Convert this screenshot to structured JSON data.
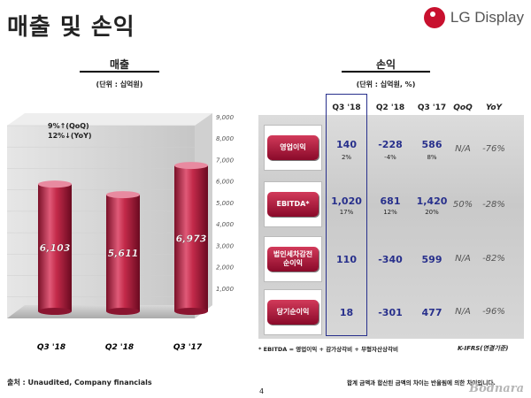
{
  "header": {
    "title": "매출 및 손익",
    "logo_text": "LG Display"
  },
  "left": {
    "section_title": "매출",
    "unit": "(단위 : 십억원)",
    "growth_line1": "9%↑(QoQ)",
    "growth_line2": "12%↓(YoY)"
  },
  "right": {
    "section_title": "손익",
    "unit": "(단위 : 십억원, %)"
  },
  "chart_data": {
    "type": "bar",
    "categories": [
      "Q3 '18",
      "Q2 '18",
      "Q3 '17"
    ],
    "values": [
      6103,
      5611,
      6973
    ],
    "value_labels": [
      "6,103",
      "5,611",
      "6,973"
    ],
    "ylim": [
      0,
      9000
    ],
    "yticks": [
      1000,
      2000,
      3000,
      4000,
      5000,
      6000,
      7000,
      8000,
      9000
    ],
    "ytick_labels": [
      "1,000",
      "2,000",
      "3,000",
      "4,000",
      "5,000",
      "6,000",
      "7,000",
      "8,000",
      "9,000"
    ],
    "title": "매출",
    "xlabel": "",
    "ylabel": "",
    "bar_color": "#b3243f"
  },
  "table": {
    "columns": [
      "Q3 '18",
      "Q2 '18",
      "Q3 '17",
      "QoQ",
      "YoY"
    ],
    "rows": [
      {
        "label_line1": "영업이익",
        "label_line2": "",
        "q3_18": "140",
        "q3_18_pct": "2%",
        "q2_18": "-228",
        "q2_18_pct": "-4%",
        "q3_17": "586",
        "q3_17_pct": "8%",
        "qoq": "N/A",
        "yoy": "-76%"
      },
      {
        "label_line1": "EBITDA*",
        "label_line2": "",
        "q3_18": "1,020",
        "q3_18_pct": "17%",
        "q2_18": "681",
        "q2_18_pct": "12%",
        "q3_17": "1,420",
        "q3_17_pct": "20%",
        "qoq": "50%",
        "yoy": "-28%"
      },
      {
        "label_line1": "법인세차감전",
        "label_line2": "순이익",
        "q3_18": "110",
        "q3_18_pct": "",
        "q2_18": "-340",
        "q2_18_pct": "",
        "q3_17": "599",
        "q3_17_pct": "",
        "qoq": "N/A",
        "yoy": "-82%"
      },
      {
        "label_line1": "당기순이익",
        "label_line2": "",
        "q3_18": "18",
        "q3_18_pct": "",
        "q2_18": "-301",
        "q2_18_pct": "",
        "q3_17": "477",
        "q3_17_pct": "",
        "qoq": "N/A",
        "yoy": "-96%"
      }
    ]
  },
  "footer": {
    "footnote": "* EBITDA = 영업이익 + 감가상각비 + 무형자산상각비",
    "standard": "K-IFRS(연결기준)",
    "source": "출처 : Unaudited, Company financials",
    "rounding": "합계 금액과 합산된 금액의 차이는 반올림에 의한 차이입니다.",
    "page": "4",
    "watermark": "Bodnara"
  },
  "colors": {
    "accent_red": "#c8102e",
    "highlight_blue": "#28308c"
  }
}
